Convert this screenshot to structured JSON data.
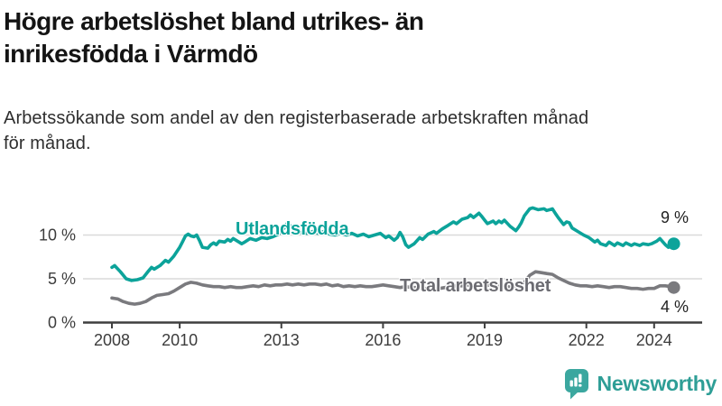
{
  "header": {
    "title": "Högre arbetslöshet bland utrikes- än inrikesfödda i Värmdö",
    "title_lines": [
      "Högre arbetslöshet bland utrikes- än",
      "inrikesfödda i Värmdö"
    ],
    "subtitle": "Arbetssökande som andel av den registerbaserade arbetskraften månad för månad.",
    "subtitle_lines": [
      "Arbetssökande som andel av den registerbaserade arbetskraften månad",
      "för månad."
    ]
  },
  "branding": {
    "logo_text": "Newsworthy",
    "logo_text_color": "#2E9E96",
    "logo_icon_color": "#3BA79F"
  },
  "chart_data": {
    "type": "line",
    "title": "Högre arbetslöshet bland utrikes- än inrikesfödda i Värmdö",
    "subtitle": "Arbetssökande som andel av den registerbaserade arbetskraften månad för månad.",
    "unit": "%",
    "x_ticks": [
      2008,
      2010,
      2013,
      2016,
      2019,
      2022,
      2024
    ],
    "x_tick_labels": [
      "2008",
      "2010",
      "2013",
      "2016",
      "2019",
      "2022",
      "2024"
    ],
    "y_ticks": [
      0,
      5,
      10
    ],
    "y_tick_labels": [
      "0 %",
      "5 %",
      "10 %"
    ],
    "xlim": [
      2007.2,
      2025.4
    ],
    "ylim": [
      0,
      13.5
    ],
    "grid": "horizontal",
    "legend": "inline-labels",
    "axis_color": "#3F3F3F",
    "grid_color": "#DADADA",
    "tick_label_color": "#3C3C3C",
    "series": [
      {
        "name": "Utlandsfödda",
        "label": "Utlandsfödda",
        "color": "#0CA39A",
        "end_label": "9 %",
        "end_value": 9,
        "points": [
          [
            2008.0,
            6.3
          ],
          [
            2008.08,
            6.5
          ],
          [
            2008.25,
            5.8
          ],
          [
            2008.42,
            5.0
          ],
          [
            2008.58,
            4.8
          ],
          [
            2008.75,
            4.9
          ],
          [
            2008.92,
            5.1
          ],
          [
            2009.08,
            5.9
          ],
          [
            2009.17,
            6.3
          ],
          [
            2009.25,
            6.1
          ],
          [
            2009.42,
            6.5
          ],
          [
            2009.58,
            7.1
          ],
          [
            2009.67,
            6.9
          ],
          [
            2009.83,
            7.6
          ],
          [
            2010.0,
            8.6
          ],
          [
            2010.08,
            9.2
          ],
          [
            2010.17,
            9.9
          ],
          [
            2010.25,
            10.1
          ],
          [
            2010.33,
            9.9
          ],
          [
            2010.42,
            9.8
          ],
          [
            2010.5,
            10.0
          ],
          [
            2010.58,
            9.4
          ],
          [
            2010.67,
            8.6
          ],
          [
            2010.83,
            8.5
          ],
          [
            2010.92,
            8.9
          ],
          [
            2011.0,
            9.1
          ],
          [
            2011.08,
            8.9
          ],
          [
            2011.17,
            9.3
          ],
          [
            2011.33,
            9.2
          ],
          [
            2011.42,
            9.5
          ],
          [
            2011.5,
            9.3
          ],
          [
            2011.58,
            9.6
          ],
          [
            2011.75,
            9.2
          ],
          [
            2011.83,
            9.0
          ],
          [
            2011.92,
            9.2
          ],
          [
            2012.08,
            9.6
          ],
          [
            2012.25,
            9.4
          ],
          [
            2012.42,
            9.7
          ],
          [
            2012.58,
            9.6
          ],
          [
            2012.75,
            9.8
          ],
          [
            2012.92,
            10.1
          ],
          [
            2013.08,
            10.8
          ],
          [
            2013.17,
            11.3
          ],
          [
            2013.25,
            11.1
          ],
          [
            2013.42,
            10.5
          ],
          [
            2013.58,
            10.3
          ],
          [
            2013.75,
            10.2
          ],
          [
            2013.92,
            10.4
          ],
          [
            2014.08,
            10.2
          ],
          [
            2014.25,
            10.4
          ],
          [
            2014.42,
            10.1
          ],
          [
            2014.58,
            10.0
          ],
          [
            2014.75,
            10.2
          ],
          [
            2014.92,
            10.0
          ],
          [
            2015.08,
            10.2
          ],
          [
            2015.25,
            9.9
          ],
          [
            2015.42,
            10.1
          ],
          [
            2015.58,
            9.8
          ],
          [
            2015.75,
            10.0
          ],
          [
            2015.92,
            10.2
          ],
          [
            2016.08,
            9.7
          ],
          [
            2016.17,
            9.9
          ],
          [
            2016.33,
            9.4
          ],
          [
            2016.42,
            9.7
          ],
          [
            2016.5,
            10.3
          ],
          [
            2016.58,
            9.8
          ],
          [
            2016.67,
            8.9
          ],
          [
            2016.75,
            8.6
          ],
          [
            2016.92,
            9.0
          ],
          [
            2017.08,
            9.7
          ],
          [
            2017.17,
            9.5
          ],
          [
            2017.33,
            10.1
          ],
          [
            2017.5,
            10.4
          ],
          [
            2017.58,
            10.2
          ],
          [
            2017.75,
            10.7
          ],
          [
            2017.92,
            11.1
          ],
          [
            2018.08,
            11.5
          ],
          [
            2018.17,
            11.3
          ],
          [
            2018.33,
            11.8
          ],
          [
            2018.5,
            12.0
          ],
          [
            2018.58,
            12.3
          ],
          [
            2018.67,
            12.0
          ],
          [
            2018.83,
            12.5
          ],
          [
            2018.92,
            12.1
          ],
          [
            2019.0,
            11.7
          ],
          [
            2019.08,
            11.3
          ],
          [
            2019.25,
            11.6
          ],
          [
            2019.33,
            11.3
          ],
          [
            2019.42,
            11.6
          ],
          [
            2019.5,
            11.4
          ],
          [
            2019.58,
            11.7
          ],
          [
            2019.75,
            11.0
          ],
          [
            2019.92,
            10.5
          ],
          [
            2020.0,
            10.9
          ],
          [
            2020.08,
            11.4
          ],
          [
            2020.17,
            12.2
          ],
          [
            2020.33,
            13.0
          ],
          [
            2020.42,
            13.1
          ],
          [
            2020.58,
            12.9
          ],
          [
            2020.75,
            13.0
          ],
          [
            2020.83,
            12.8
          ],
          [
            2020.92,
            12.9
          ],
          [
            2021.0,
            13.0
          ],
          [
            2021.08,
            12.5
          ],
          [
            2021.17,
            12.0
          ],
          [
            2021.25,
            11.6
          ],
          [
            2021.33,
            11.2
          ],
          [
            2021.42,
            11.5
          ],
          [
            2021.5,
            11.4
          ],
          [
            2021.58,
            10.8
          ],
          [
            2021.75,
            10.4
          ],
          [
            2021.92,
            10.0
          ],
          [
            2022.08,
            9.7
          ],
          [
            2022.25,
            9.2
          ],
          [
            2022.33,
            9.4
          ],
          [
            2022.42,
            9.0
          ],
          [
            2022.58,
            8.8
          ],
          [
            2022.67,
            9.2
          ],
          [
            2022.83,
            8.8
          ],
          [
            2022.92,
            9.1
          ],
          [
            2023.08,
            8.8
          ],
          [
            2023.17,
            9.1
          ],
          [
            2023.33,
            8.8
          ],
          [
            2023.42,
            9.0
          ],
          [
            2023.58,
            8.8
          ],
          [
            2023.67,
            9.0
          ],
          [
            2023.83,
            8.9
          ],
          [
            2023.92,
            9.0
          ],
          [
            2024.08,
            9.3
          ],
          [
            2024.17,
            9.6
          ],
          [
            2024.33,
            8.9
          ],
          [
            2024.42,
            8.6
          ],
          [
            2024.58,
            9.0
          ]
        ]
      },
      {
        "name": "Total arbetslöshet",
        "label": "Total arbetslöshet",
        "color": "#7A7A7E",
        "label_color": "#6C6C72",
        "end_label": "4 %",
        "end_value": 4,
        "points": [
          [
            2008.0,
            2.8
          ],
          [
            2008.17,
            2.7
          ],
          [
            2008.33,
            2.4
          ],
          [
            2008.5,
            2.2
          ],
          [
            2008.67,
            2.1
          ],
          [
            2008.83,
            2.2
          ],
          [
            2009.0,
            2.4
          ],
          [
            2009.17,
            2.8
          ],
          [
            2009.33,
            3.1
          ],
          [
            2009.5,
            3.2
          ],
          [
            2009.67,
            3.3
          ],
          [
            2009.83,
            3.6
          ],
          [
            2010.0,
            4.0
          ],
          [
            2010.17,
            4.4
          ],
          [
            2010.33,
            4.6
          ],
          [
            2010.5,
            4.5
          ],
          [
            2010.67,
            4.3
          ],
          [
            2010.83,
            4.2
          ],
          [
            2011.0,
            4.1
          ],
          [
            2011.17,
            4.1
          ],
          [
            2011.33,
            4.0
          ],
          [
            2011.5,
            4.1
          ],
          [
            2011.67,
            4.0
          ],
          [
            2011.83,
            4.0
          ],
          [
            2012.0,
            4.1
          ],
          [
            2012.17,
            4.2
          ],
          [
            2012.33,
            4.1
          ],
          [
            2012.5,
            4.3
          ],
          [
            2012.67,
            4.2
          ],
          [
            2012.83,
            4.3
          ],
          [
            2013.0,
            4.3
          ],
          [
            2013.17,
            4.4
          ],
          [
            2013.33,
            4.3
          ],
          [
            2013.5,
            4.4
          ],
          [
            2013.67,
            4.3
          ],
          [
            2013.83,
            4.4
          ],
          [
            2014.0,
            4.4
          ],
          [
            2014.17,
            4.3
          ],
          [
            2014.33,
            4.4
          ],
          [
            2014.5,
            4.2
          ],
          [
            2014.67,
            4.3
          ],
          [
            2014.83,
            4.1
          ],
          [
            2015.0,
            4.2
          ],
          [
            2015.17,
            4.1
          ],
          [
            2015.33,
            4.2
          ],
          [
            2015.5,
            4.1
          ],
          [
            2015.67,
            4.1
          ],
          [
            2015.83,
            4.2
          ],
          [
            2016.0,
            4.3
          ],
          [
            2016.17,
            4.2
          ],
          [
            2016.33,
            4.1
          ],
          [
            2016.5,
            4.0
          ],
          [
            2016.67,
            4.1
          ],
          [
            2016.83,
            4.0
          ],
          [
            2017.0,
            4.0
          ],
          [
            2017.17,
            3.9
          ],
          [
            2017.33,
            3.9
          ],
          [
            2017.5,
            3.8
          ],
          [
            2017.67,
            3.9
          ],
          [
            2017.83,
            4.0
          ],
          [
            2018.0,
            4.1
          ],
          [
            2018.17,
            4.2
          ],
          [
            2018.33,
            4.2
          ],
          [
            2018.5,
            4.3
          ],
          [
            2018.67,
            4.2
          ],
          [
            2018.83,
            4.3
          ],
          [
            2019.0,
            4.2
          ],
          [
            2019.17,
            4.3
          ],
          [
            2019.33,
            4.2
          ],
          [
            2019.5,
            4.2
          ],
          [
            2019.67,
            4.1
          ],
          [
            2019.83,
            4.0
          ],
          [
            2020.0,
            4.1
          ],
          [
            2020.17,
            4.6
          ],
          [
            2020.33,
            5.4
          ],
          [
            2020.5,
            5.8
          ],
          [
            2020.67,
            5.7
          ],
          [
            2020.83,
            5.6
          ],
          [
            2021.0,
            5.5
          ],
          [
            2021.17,
            5.1
          ],
          [
            2021.33,
            4.8
          ],
          [
            2021.5,
            4.5
          ],
          [
            2021.67,
            4.3
          ],
          [
            2021.83,
            4.2
          ],
          [
            2022.0,
            4.2
          ],
          [
            2022.17,
            4.1
          ],
          [
            2022.33,
            4.2
          ],
          [
            2022.5,
            4.1
          ],
          [
            2022.67,
            4.0
          ],
          [
            2022.83,
            4.1
          ],
          [
            2023.0,
            4.1
          ],
          [
            2023.17,
            4.0
          ],
          [
            2023.33,
            3.9
          ],
          [
            2023.5,
            3.9
          ],
          [
            2023.67,
            3.8
          ],
          [
            2023.83,
            3.9
          ],
          [
            2024.0,
            3.9
          ],
          [
            2024.17,
            4.2
          ],
          [
            2024.33,
            4.2
          ],
          [
            2024.5,
            4.1
          ],
          [
            2024.58,
            4.0
          ]
        ]
      }
    ]
  }
}
